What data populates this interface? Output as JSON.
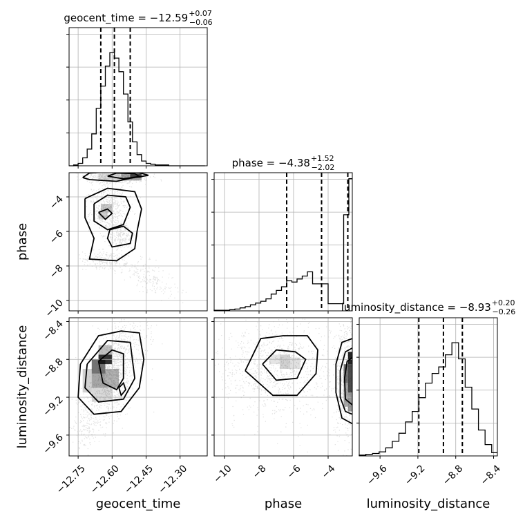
{
  "chart_data": {
    "type": "corner",
    "parameters": [
      {
        "name": "geocent_time",
        "title_prefix": "geocent_time = ",
        "median": "−12.59",
        "err_plus": "+0.07",
        "err_minus": "−0.06",
        "range": [
          -12.79,
          -12.18
        ],
        "ticks": [
          -12.75,
          -12.6,
          -12.45,
          -12.3
        ],
        "tick_labels": [
          "−12.75",
          "−12.60",
          "−12.45",
          "−12.30"
        ],
        "quantiles": [
          -12.65,
          -12.59,
          -12.52
        ],
        "hist_edges": [
          -12.79,
          -12.77,
          -12.75,
          -12.73,
          -12.71,
          -12.69,
          -12.67,
          -12.65,
          -12.63,
          -12.61,
          -12.59,
          -12.57,
          -12.55,
          -12.53,
          -12.51,
          -12.49,
          -12.47,
          -12.45,
          -12.43,
          -12.41,
          -12.39,
          -12.37,
          -12.35,
          -12.33,
          -12.31,
          -12.29,
          -12.27,
          -12.25,
          -12.23,
          -12.21,
          -12.19
        ],
        "hist_counts": [
          0,
          1,
          3,
          10,
          21,
          40,
          72,
          100,
          125,
          142,
          135,
          118,
          90,
          55,
          30,
          14,
          6,
          3,
          2,
          1,
          1,
          1,
          0,
          0,
          0,
          0,
          0,
          0,
          0,
          0
        ]
      },
      {
        "name": "phase",
        "title_prefix": "phase = ",
        "median": "−4.38",
        "err_plus": "+1.52",
        "err_minus": "−2.02",
        "range": [
          -10.6,
          -2.6
        ],
        "ticks": [
          -10,
          -8,
          -6,
          -4
        ],
        "tick_labels": [
          "−10",
          "−8",
          "−6",
          "−4"
        ],
        "quantiles": [
          -6.4,
          -4.38,
          -2.86
        ],
        "hist_edges": [
          -10.6,
          -10.3,
          -10.0,
          -9.7,
          -9.4,
          -9.1,
          -8.8,
          -8.5,
          -8.2,
          -7.9,
          -7.6,
          -7.3,
          -7.0,
          -6.7,
          -6.4,
          -6.1,
          -5.8,
          -5.5,
          -5.2,
          -4.9,
          -4.6,
          -4.3,
          -4.0,
          -3.7,
          -3.4,
          -3.1,
          -2.8,
          -2.6
        ],
        "hist_counts": [
          1,
          1,
          1,
          2,
          3,
          5,
          7,
          10,
          13,
          16,
          20,
          28,
          34,
          40,
          50,
          48,
          53,
          58,
          65,
          45,
          45,
          45,
          12,
          12,
          12,
          160,
          220
        ],
        "plot_ylim": [
          0,
          230
        ]
      },
      {
        "name": "luminosity_distance",
        "title_prefix": "luminosity_distance = ",
        "median": "−8.93",
        "err_plus": "+0.20",
        "err_minus": "−0.26",
        "range": [
          -9.82,
          -8.36
        ],
        "ticks": [
          -9.6,
          -9.2,
          -8.8,
          -8.4
        ],
        "tick_labels": [
          "−9.6",
          "−9.2",
          "−8.8",
          "−8.4"
        ],
        "quantiles": [
          -9.19,
          -8.93,
          -8.73
        ],
        "hist_edges": [
          -9.82,
          -9.75,
          -9.68,
          -9.61,
          -9.54,
          -9.47,
          -9.4,
          -9.33,
          -9.26,
          -9.19,
          -9.12,
          -9.05,
          -8.98,
          -8.91,
          -8.84,
          -8.77,
          -8.7,
          -8.63,
          -8.56,
          -8.49,
          -8.42,
          -8.36
        ],
        "hist_counts": [
          1,
          2,
          3,
          5,
          10,
          18,
          28,
          42,
          55,
          72,
          90,
          102,
          110,
          125,
          140,
          120,
          85,
          58,
          32,
          14,
          4
        ]
      }
    ],
    "contours_2d": [
      {
        "x": "geocent_time",
        "y": "phase",
        "levels": [
          {
            "polyline": true,
            "points": [
              [
                -12.73,
                -2.88
              ],
              [
                -12.7,
                -2.62
              ],
              [
                -12.6,
                -2.55
              ],
              [
                -12.48,
                -2.6
              ],
              [
                -12.44,
                -2.75
              ],
              [
                -12.52,
                -2.92
              ],
              [
                -12.58,
                -3.1
              ],
              [
                -12.7,
                -3.0
              ],
              [
                -12.73,
                -2.88
              ]
            ]
          },
          {
            "polyline": true,
            "points": [
              [
                -12.62,
                -2.8
              ],
              [
                -12.58,
                -2.62
              ],
              [
                -12.5,
                -2.65
              ],
              [
                -12.48,
                -2.82
              ],
              [
                -12.55,
                -2.95
              ],
              [
                -12.62,
                -2.8
              ]
            ]
          },
          {
            "polyline": true,
            "points": [
              [
                -12.68,
                -4.4
              ],
              [
                -12.62,
                -3.9
              ],
              [
                -12.54,
                -4.0
              ],
              [
                -12.52,
                -4.6
              ],
              [
                -12.55,
                -5.6
              ],
              [
                -12.62,
                -5.9
              ],
              [
                -12.68,
                -5.4
              ],
              [
                -12.68,
                -4.4
              ]
            ]
          },
          {
            "polyline": true,
            "points": [
              [
                -12.61,
                -5.9
              ],
              [
                -12.55,
                -5.7
              ],
              [
                -12.51,
                -6.1
              ],
              [
                -12.52,
                -6.7
              ],
              [
                -12.6,
                -6.9
              ],
              [
                -12.62,
                -6.4
              ],
              [
                -12.61,
                -5.9
              ]
            ]
          },
          {
            "polyline": true,
            "points": [
              [
                -12.66,
                -4.9
              ],
              [
                -12.62,
                -4.7
              ],
              [
                -12.6,
                -4.95
              ],
              [
                -12.63,
                -5.3
              ],
              [
                -12.66,
                -4.9
              ]
            ]
          },
          {
            "polyline": true,
            "points": [
              [
                -12.72,
                -4.1
              ],
              [
                -12.62,
                -3.5
              ],
              [
                -12.5,
                -3.7
              ],
              [
                -12.47,
                -4.7
              ],
              [
                -12.49,
                -6.0
              ],
              [
                -12.5,
                -7.0
              ],
              [
                -12.58,
                -7.7
              ],
              [
                -12.7,
                -7.6
              ],
              [
                -12.68,
                -6.4
              ],
              [
                -12.72,
                -5.2
              ],
              [
                -12.72,
                -4.1
              ]
            ]
          }
        ],
        "scatter_extent": {
          "x": [
            -12.79,
            -12.22
          ],
          "y": [
            -10.4,
            -2.7
          ]
        }
      },
      {
        "x": "geocent_time",
        "y": "luminosity_distance",
        "levels": [
          {
            "polyline": true,
            "points": [
              [
                -12.66,
                -8.82
              ],
              [
                -12.6,
                -8.7
              ],
              [
                -12.55,
                -8.74
              ],
              [
                -12.55,
                -9.0
              ],
              [
                -12.58,
                -9.12
              ],
              [
                -12.64,
                -9.05
              ],
              [
                -12.66,
                -8.82
              ]
            ]
          },
          {
            "polyline": true,
            "points": [
              [
                -12.71,
                -8.85
              ],
              [
                -12.62,
                -8.6
              ],
              [
                -12.52,
                -8.62
              ],
              [
                -12.5,
                -9.0
              ],
              [
                -12.55,
                -9.22
              ],
              [
                -12.66,
                -9.25
              ],
              [
                -12.72,
                -9.1
              ],
              [
                -12.71,
                -8.85
              ]
            ]
          },
          {
            "polyline": true,
            "points": [
              [
                -12.74,
                -8.85
              ],
              [
                -12.66,
                -8.55
              ],
              [
                -12.56,
                -8.5
              ],
              [
                -12.48,
                -8.52
              ],
              [
                -12.46,
                -8.8
              ],
              [
                -12.48,
                -9.1
              ],
              [
                -12.56,
                -9.35
              ],
              [
                -12.68,
                -9.38
              ],
              [
                -12.75,
                -9.2
              ],
              [
                -12.74,
                -8.85
              ]
            ]
          },
          {
            "polyline": true,
            "points": [
              [
                -12.57,
                -9.1
              ],
              [
                -12.55,
                -9.05
              ],
              [
                -12.54,
                -9.12
              ],
              [
                -12.56,
                -9.18
              ],
              [
                -12.57,
                -9.1
              ]
            ]
          }
        ],
        "scatter_extent": {
          "x": [
            -12.79,
            -12.38
          ],
          "y": [
            -9.8,
            -8.36
          ]
        }
      },
      {
        "x": "phase",
        "y": "luminosity_distance",
        "levels": [
          {
            "polyline": true,
            "points": [
              [
                -8.8,
                -8.92
              ],
              [
                -7.9,
                -8.58
              ],
              [
                -6.6,
                -8.55
              ],
              [
                -5.2,
                -8.55
              ],
              [
                -4.6,
                -8.7
              ],
              [
                -4.7,
                -8.95
              ],
              [
                -5.8,
                -9.18
              ],
              [
                -7.2,
                -9.18
              ],
              [
                -8.8,
                -8.92
              ]
            ]
          },
          {
            "polyline": true,
            "points": [
              [
                -7.8,
                -8.85
              ],
              [
                -7.0,
                -8.7
              ],
              [
                -5.9,
                -8.72
              ],
              [
                -5.3,
                -8.8
              ],
              [
                -5.8,
                -9.0
              ],
              [
                -7.0,
                -9.02
              ],
              [
                -7.8,
                -8.85
              ]
            ]
          },
          {
            "polyline": true,
            "points": [
              [
                -2.6,
                -8.58
              ],
              [
                -3.2,
                -8.62
              ],
              [
                -3.55,
                -8.85
              ],
              [
                -3.55,
                -9.15
              ],
              [
                -3.2,
                -9.42
              ],
              [
                -2.6,
                -9.48
              ]
            ]
          },
          {
            "polyline": true,
            "points": [
              [
                -2.6,
                -8.68
              ],
              [
                -3.0,
                -8.72
              ],
              [
                -3.3,
                -8.92
              ],
              [
                -3.3,
                -9.2
              ],
              [
                -3.0,
                -9.35
              ],
              [
                -2.6,
                -9.38
              ]
            ]
          },
          {
            "polyline": true,
            "points": [
              [
                -2.6,
                -8.78
              ],
              [
                -2.9,
                -8.82
              ],
              [
                -3.05,
                -9.0
              ],
              [
                -3.0,
                -9.22
              ],
              [
                -2.6,
                -9.28
              ]
            ]
          }
        ],
        "scatter_extent": {
          "x": [
            -10.6,
            -2.6
          ],
          "y": [
            -9.82,
            -8.36
          ]
        }
      }
    ]
  }
}
